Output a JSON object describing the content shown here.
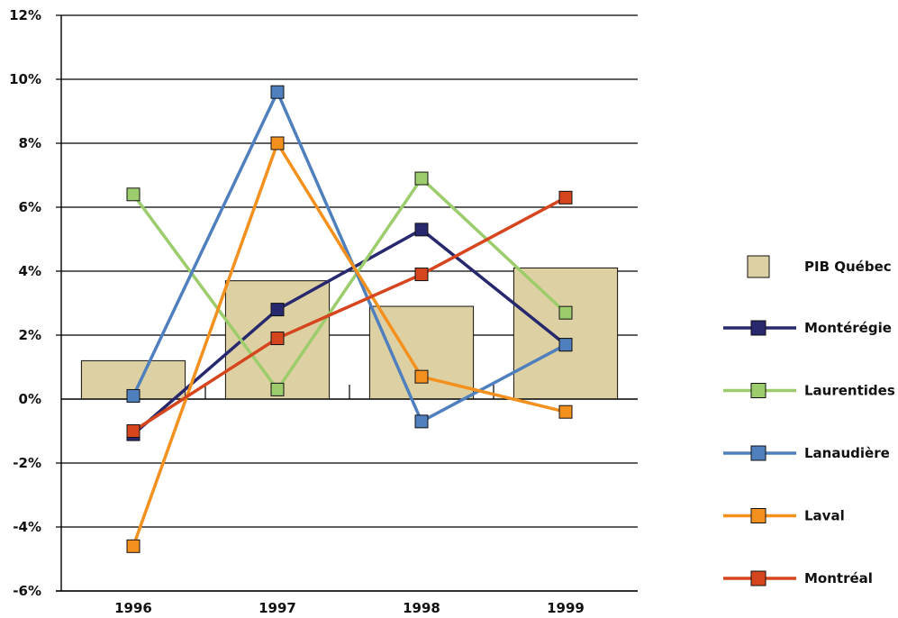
{
  "chart_data": {
    "type": "bar",
    "title": "",
    "xlabel": "",
    "ylabel": "",
    "categories": [
      "1996",
      "1997",
      "1998",
      "1999"
    ],
    "ylim": [
      -6,
      12
    ],
    "yticks": [
      "12%",
      "10%",
      "8%",
      "6%",
      "4%",
      "2%",
      "0%",
      "-2%",
      "-4%",
      "-6%"
    ],
    "y_tick_values": [
      12,
      10,
      8,
      6,
      4,
      2,
      0,
      -2,
      -4,
      -6
    ],
    "grid": "horizontal",
    "legend_position": "right",
    "bars": {
      "name": "PIB Québec",
      "color": "#ddd0a2",
      "values": [
        1.2,
        3.7,
        2.9,
        4.1
      ]
    },
    "series": [
      {
        "name": "Montérégie",
        "color": "#27286e",
        "values": [
          -1.1,
          2.8,
          5.3,
          1.7
        ]
      },
      {
        "name": "Laurentides",
        "color": "#9ccc6c",
        "values": [
          6.4,
          0.3,
          6.9,
          2.7
        ]
      },
      {
        "name": "Lanaudière",
        "color": "#4f80bd",
        "values": [
          0.1,
          9.6,
          -0.7,
          1.7
        ]
      },
      {
        "name": "Laval",
        "color": "#f4901e",
        "values": [
          -4.6,
          8.0,
          0.7,
          -0.4
        ]
      },
      {
        "name": "Montréal",
        "color": "#d5461f",
        "values": [
          -1.0,
          1.9,
          3.9,
          6.3
        ]
      }
    ]
  }
}
